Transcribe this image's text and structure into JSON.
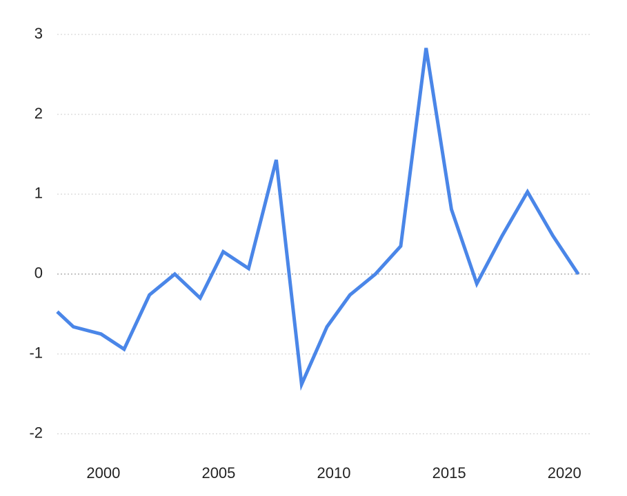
{
  "chart_data": {
    "type": "line",
    "x": [
      1998.0,
      1998.7,
      1999.9,
      2000.9,
      2002.0,
      2003.1,
      2004.2,
      2005.2,
      2006.3,
      2007.5,
      2008.6,
      2009.7,
      2010.7,
      2011.8,
      2012.9,
      2014.0,
      2015.1,
      2016.2,
      2017.3,
      2018.4,
      2019.5,
      2020.6
    ],
    "series": [
      {
        "color": "#4a86e8",
        "values": [
          -0.47,
          -0.66,
          -0.75,
          -0.94,
          -0.26,
          0,
          -0.3,
          0.28,
          0.07,
          1.43,
          -1.38,
          -0.66,
          -0.26,
          0,
          0.35,
          2.83,
          0.81,
          -0.12,
          0.48,
          1.03,
          0.48,
          0
        ]
      }
    ],
    "xlim": [
      1998.0,
      2021.1
    ],
    "xticks": [
      2000,
      2005,
      2010,
      2015,
      2020
    ],
    "ylim": [
      -2.2,
      3
    ],
    "yticks": [
      -2,
      -1,
      0,
      1,
      2,
      3
    ],
    "grid": true
  }
}
